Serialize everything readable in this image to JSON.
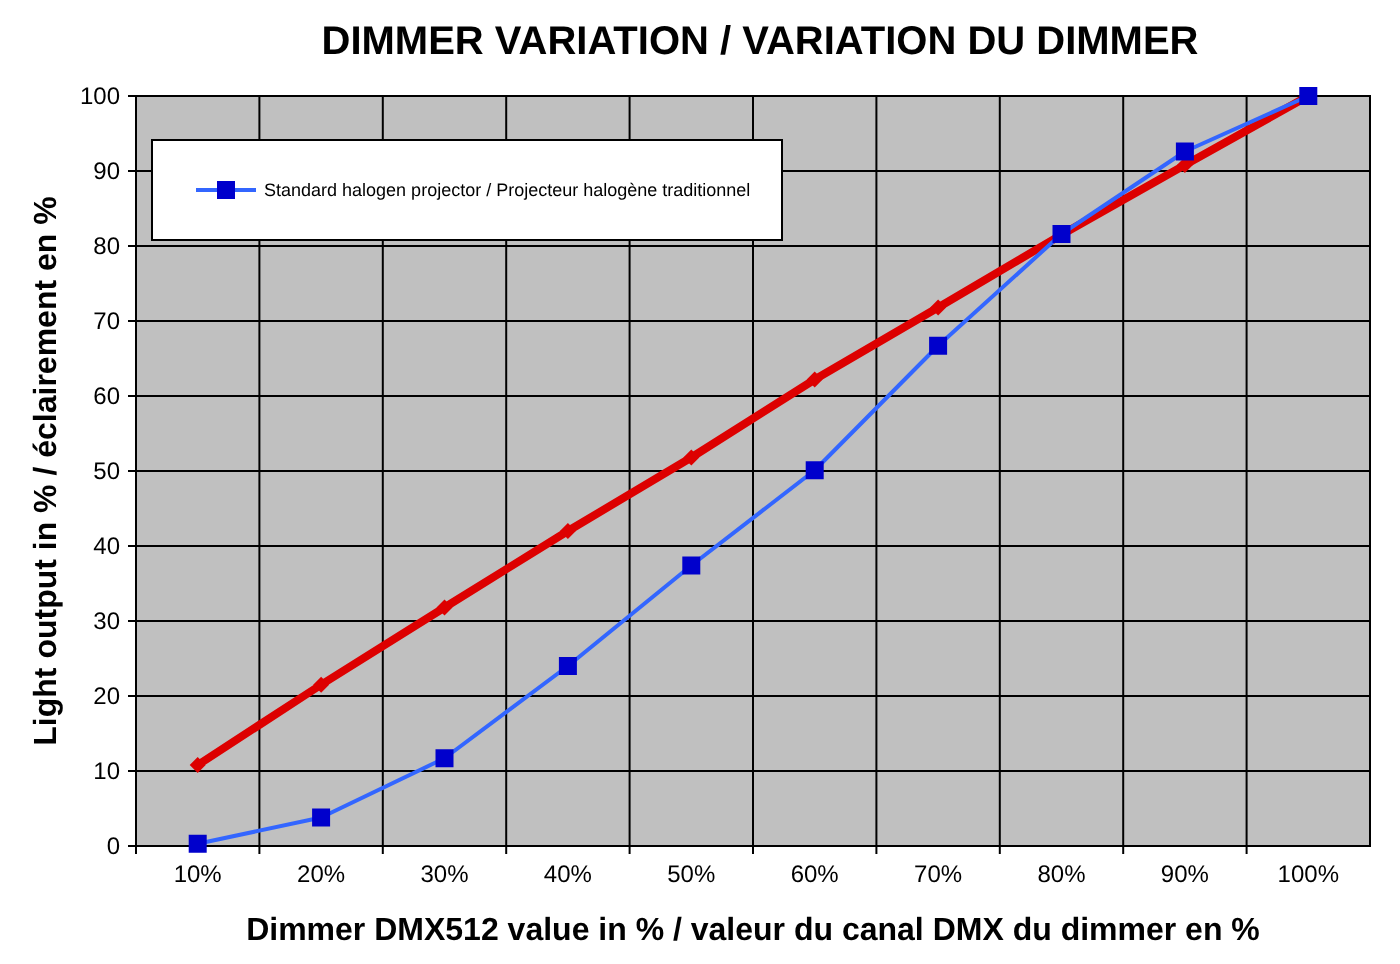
{
  "chart_data": {
    "type": "line",
    "title": "DIMMER VARIATION / VARIATION DU DIMMER",
    "xlabel": "Dimmer DMX512 value in % / valeur du canal DMX du dimmer en %",
    "ylabel": "Light output in % / éclairement en %",
    "categories": [
      "10%",
      "20%",
      "30%",
      "40%",
      "50%",
      "60%",
      "70%",
      "80%",
      "90%",
      "100%"
    ],
    "ylim": [
      0,
      100
    ],
    "yticks": [
      0,
      10,
      20,
      30,
      40,
      50,
      60,
      70,
      80,
      90,
      100
    ],
    "grid": true,
    "legend": "top left",
    "line_style": "solid",
    "series": [
      {
        "color": "#dd0000",
        "marker": "diamond",
        "values": [
          10.8,
          21.5,
          31.8,
          42,
          51.8,
          62.2,
          71.8,
          81.5,
          90.8,
          100
        ]
      },
      {
        "name": "Standard halogen projector / Projecteur halogène traditionnel",
        "color": "#3366ff",
        "marker": "square",
        "values": [
          0.3,
          3.8,
          11.7,
          24,
          37.4,
          50.1,
          66.7,
          81.6,
          92.6,
          100
        ]
      }
    ]
  }
}
